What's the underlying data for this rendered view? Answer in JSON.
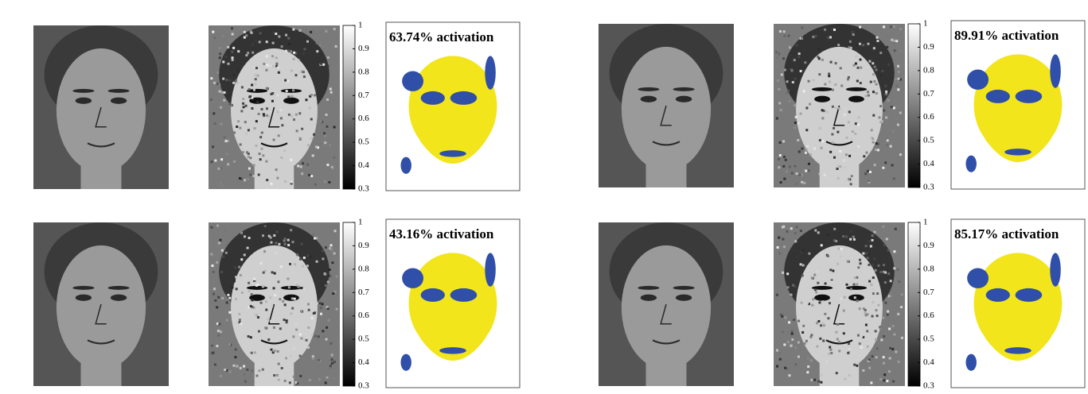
{
  "panels": [
    {
      "activation_label": "63.74% activation",
      "colorbar_ticks": [
        1,
        0.9,
        0.8,
        0.7,
        0.6,
        0.5,
        0.4,
        0.3
      ]
    },
    {
      "activation_label": "89.91% activation",
      "colorbar_ticks": [
        1,
        0.9,
        0.8,
        0.7,
        0.6,
        0.5,
        0.4,
        0.3
      ]
    },
    {
      "activation_label": "43.16% activation",
      "colorbar_ticks": [
        1,
        0.9,
        0.8,
        0.7,
        0.6,
        0.5,
        0.4,
        0.3
      ]
    },
    {
      "activation_label": "85.17% activation",
      "colorbar_ticks": [
        1,
        0.9,
        0.8,
        0.7,
        0.6,
        0.5,
        0.4,
        0.3
      ]
    }
  ]
}
